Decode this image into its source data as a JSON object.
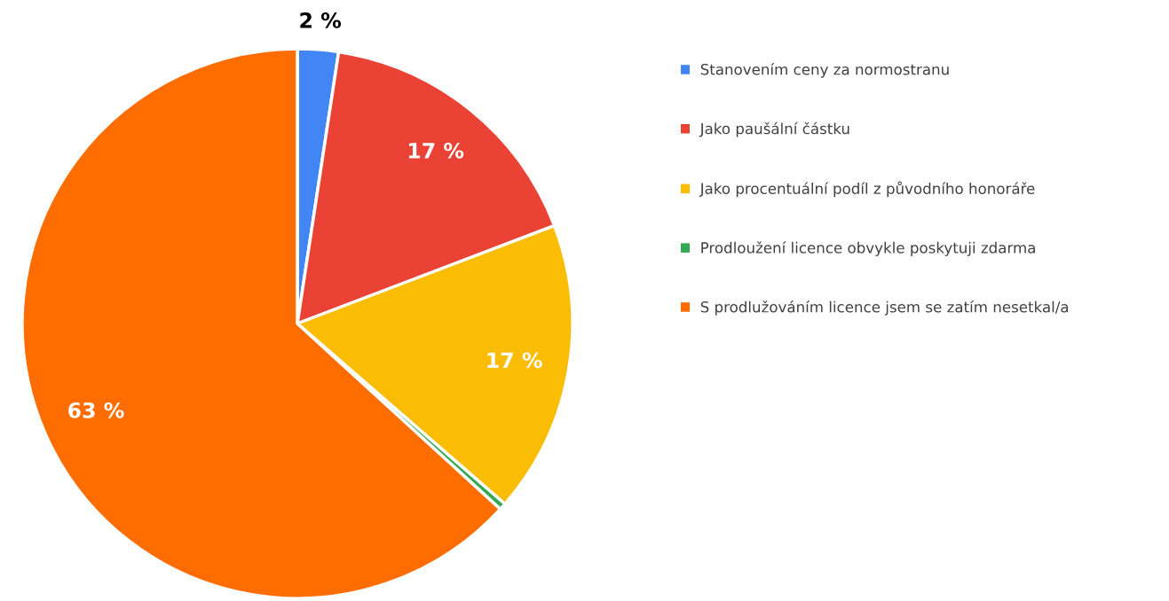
{
  "chart_data": {
    "type": "pie",
    "categories": [
      "Stanovením ceny za normostranu",
      "Jako paušální částku",
      "Jako procentuální podíl z původního honoráře",
      "Prodloužení licence obvykle poskytuji zdarma",
      "S prodlužováním licence jsem se zatím nesetkal/a"
    ],
    "values": [
      2.4,
      16.8,
      17.2,
      0.4,
      63.2
    ],
    "value_labels": [
      "2 %",
      "17 %",
      "17 %",
      null,
      "63 %"
    ],
    "colors": [
      "#4285f4",
      "#ea4335",
      "#fbbc04",
      "#34a853",
      "#ff6d01"
    ],
    "legend": "right"
  }
}
